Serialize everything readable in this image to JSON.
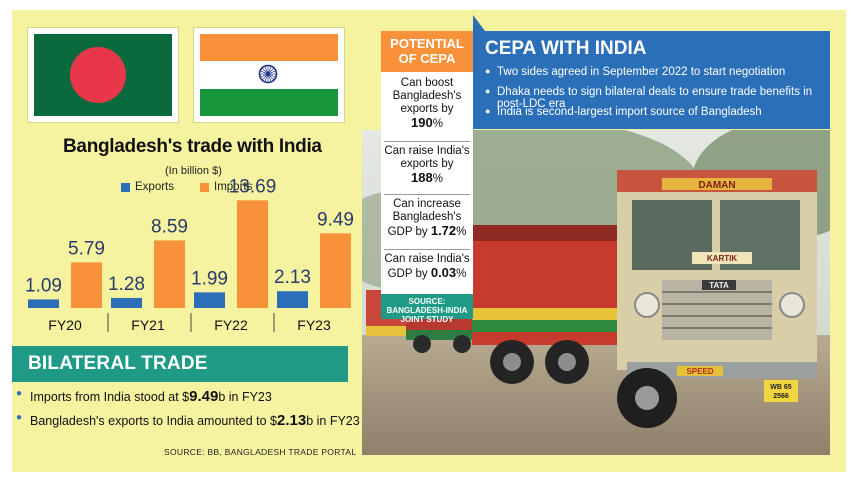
{
  "chart_data": {
    "type": "bar",
    "title": "Bangladesh's trade with India",
    "subtitle": "(In billion $)",
    "categories": [
      "FY20",
      "FY21",
      "FY22",
      "FY23"
    ],
    "series": [
      {
        "name": "Exports",
        "values": [
          1.09,
          1.28,
          1.99,
          2.13
        ],
        "color": "#2a6fb8"
      },
      {
        "name": "Imports",
        "values": [
          5.79,
          8.59,
          13.69,
          9.49
        ],
        "color": "#f7923a"
      }
    ],
    "value_labels": {
      "Exports": [
        "1.09",
        "1.28",
        "1.99",
        "2.13"
      ],
      "Imports": [
        "5.79",
        "8.59",
        "13.69",
        "9.49"
      ]
    },
    "ylim": [
      0,
      15
    ],
    "legend_position": "top",
    "grid": false
  },
  "bilateral": {
    "heading": "BILATERAL TRADE",
    "item1": {
      "pre": "Imports from India stood at $",
      "value": "9.49",
      "post": "b in FY23"
    },
    "item2": {
      "pre": "Bangladesh's exports to India amounted to $",
      "value": "2.13",
      "post": "b in FY23"
    },
    "source": "SOURCE: BB, BANGLADESH TRADE PORTAL"
  },
  "potential": {
    "heading_line1": "POTENTIAL",
    "heading_line2": "OF CEPA",
    "items": [
      {
        "l1": "Can boost",
        "l2": "Bangladesh's",
        "l3": "exports by",
        "value": "190",
        "unit": "%"
      },
      {
        "l1": "Can raise India's",
        "l2": "exports by",
        "value": "188",
        "unit": "%"
      },
      {
        "l1": "Can increase",
        "l2": "Bangladesh's",
        "l3pre": "GDP by ",
        "value": "1.72",
        "unit": "%"
      },
      {
        "l1": "Can raise India's",
        "l2pre": "GDP by ",
        "value": "0.03",
        "unit": "%"
      }
    ],
    "source_line1": "SOURCE:",
    "source_line2": "BANGLADESH-INDIA",
    "source_line3": "JOINT STUDY"
  },
  "cepa": {
    "heading": "CEPA WITH INDIA",
    "bullets": [
      "Two sides agreed in September 2022 to start negotiation",
      "Dhaka needs to sign bilateral deals to ensure trade benefits in post-LDC era",
      "India is second-largest import source of Bangladesh"
    ]
  },
  "photo": {
    "truck_cab_text": "DAMAN",
    "truck_brand": "TATA",
    "truck_nameplate": "KARTIK",
    "bumper_text": "SPEED",
    "plate_line1": "WB 65",
    "plate_line2": "2566"
  },
  "colors": {
    "background": "#f6f3a0",
    "exports": "#2a6fb8",
    "imports": "#f7923a",
    "teal": "#1f9a86",
    "cepa_blue": "#2a6fb8"
  }
}
